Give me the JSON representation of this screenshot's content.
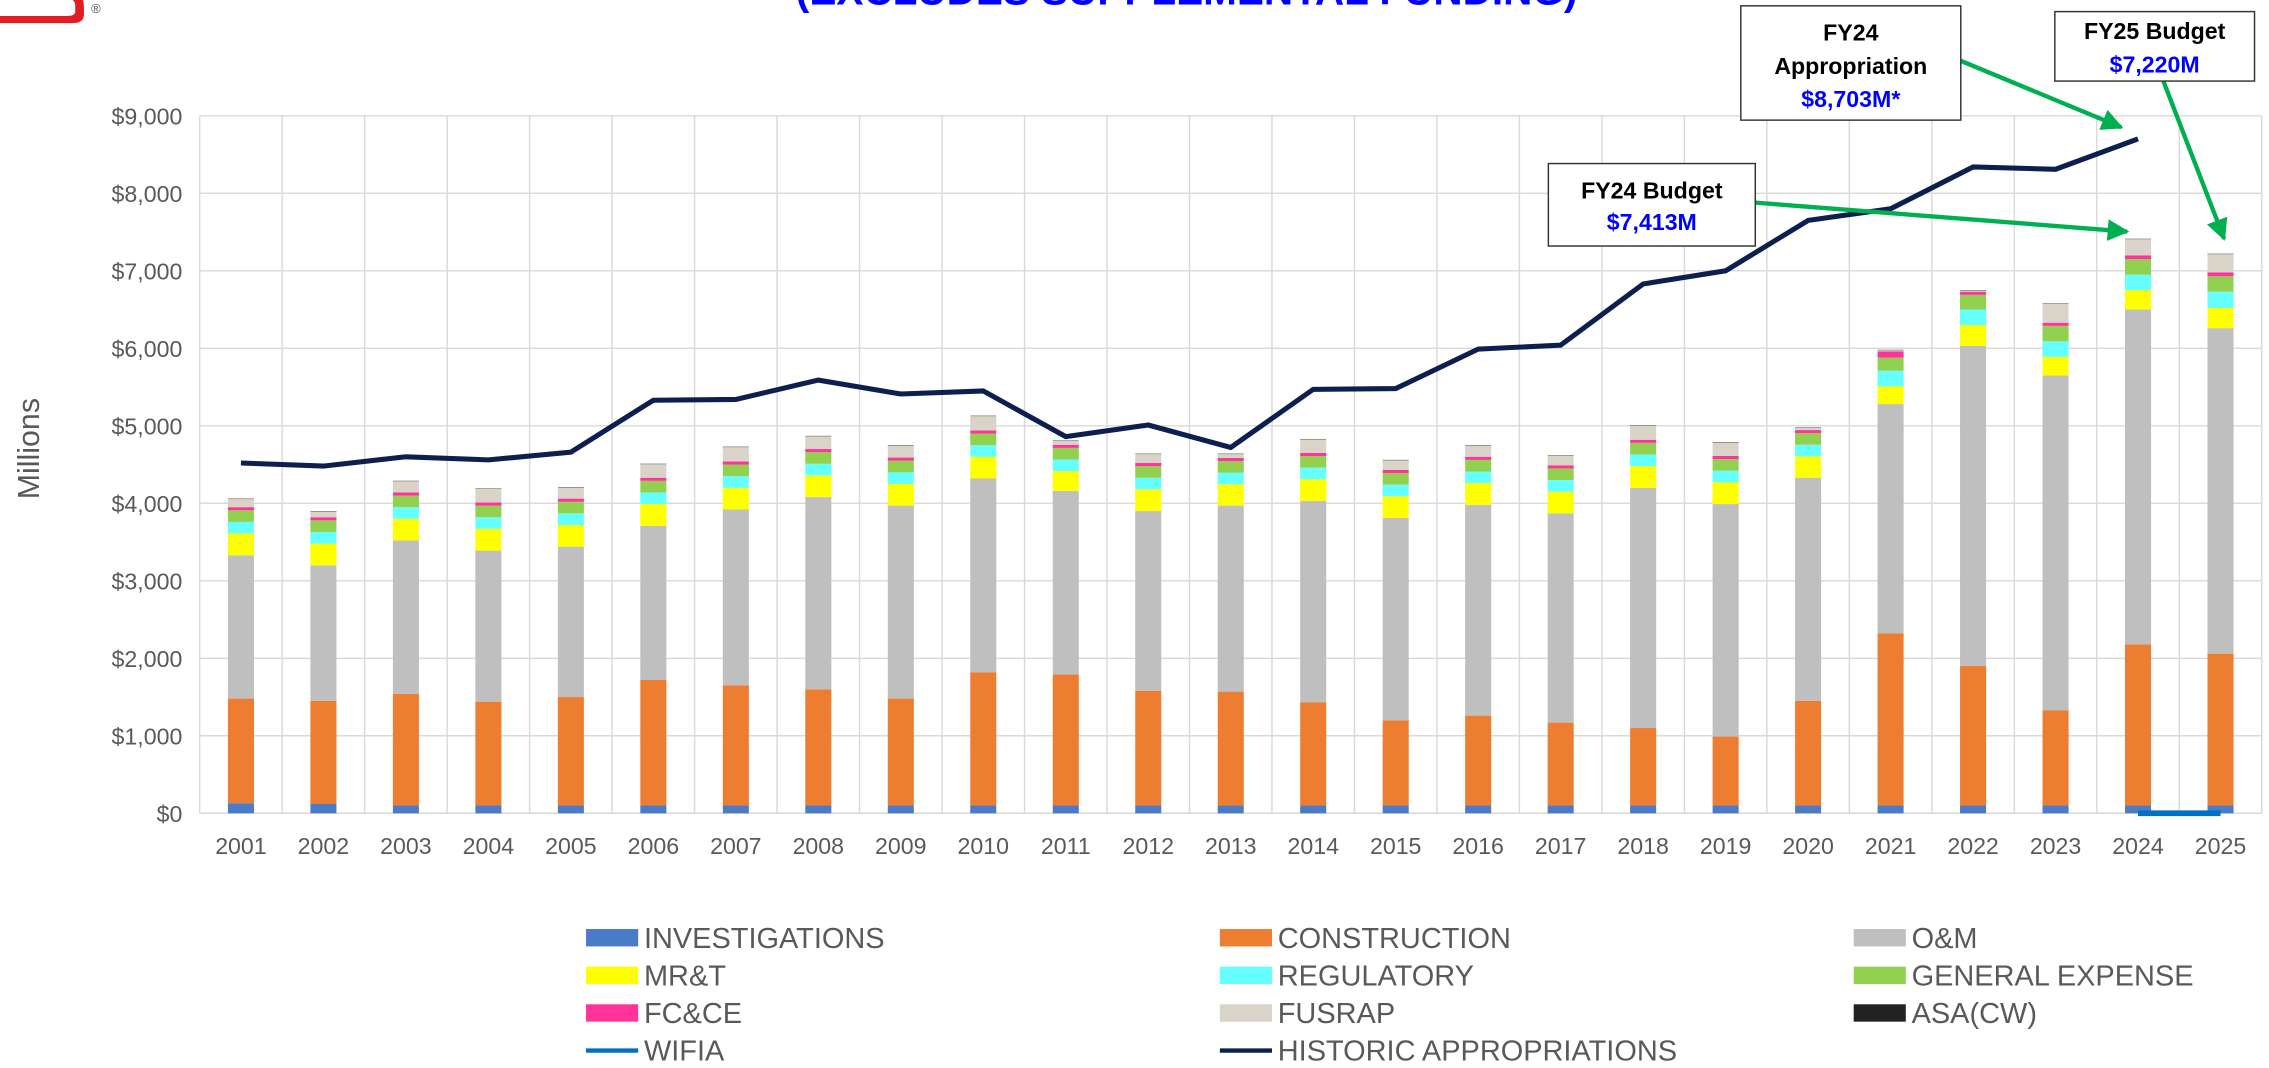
{
  "chart_data": {
    "type": "bar",
    "title": "(EXCLUDES SUPPLEMENTAL FUNDING)",
    "y_label": "Millions",
    "categories": [
      "2001",
      "2002",
      "2003",
      "2004",
      "2005",
      "2006",
      "2007",
      "2008",
      "2009",
      "2010",
      "2011",
      "2012",
      "2013",
      "2014",
      "2015",
      "2016",
      "2017",
      "2018",
      "2019",
      "2020",
      "2021",
      "2022",
      "2023",
      "2024",
      "2025"
    ],
    "ylim": [
      0,
      9000
    ],
    "yticks": [
      {
        "value": 0,
        "label": "$0"
      },
      {
        "value": 1000,
        "label": "$1,000"
      },
      {
        "value": 2000,
        "label": "$2,000"
      },
      {
        "value": 3000,
        "label": "$3,000"
      },
      {
        "value": 4000,
        "label": "$4,000"
      },
      {
        "value": 5000,
        "label": "$5,000"
      },
      {
        "value": 6000,
        "label": "$6,000"
      },
      {
        "value": 7000,
        "label": "$7,000"
      },
      {
        "value": 8000,
        "label": "$8,000"
      },
      {
        "value": 9000,
        "label": "$9,000"
      }
    ],
    "grid": true,
    "stacked": true,
    "series": [
      {
        "name": "INVESTIGATIONS",
        "color": "#4a7bc8",
        "values": [
          130,
          120,
          100,
          100,
          100,
          100,
          100,
          100,
          100,
          100,
          100,
          100,
          100,
          100,
          100,
          100,
          100,
          100,
          100,
          100,
          100,
          100,
          100,
          100,
          100
        ]
      },
      {
        "name": "CONSTRUCTION",
        "color": "#ed7d31",
        "values": [
          1350,
          1330,
          1440,
          1340,
          1400,
          1620,
          1550,
          1500,
          1380,
          1720,
          1690,
          1480,
          1470,
          1330,
          1100,
          1160,
          1070,
          1000,
          890,
          1350,
          2220,
          1800,
          1230,
          2080,
          1960
        ]
      },
      {
        "name": "O&M",
        "color": "#bfbfbf",
        "values": [
          1850,
          1750,
          1980,
          1950,
          1940,
          1990,
          2270,
          2480,
          2490,
          2500,
          2370,
          2320,
          2400,
          2600,
          2610,
          2720,
          2700,
          3100,
          3000,
          2880,
          2960,
          4130,
          4320,
          4320,
          4200
        ]
      },
      {
        "name": "MR&T",
        "color": "#ffff00",
        "values": [
          280,
          280,
          280,
          280,
          280,
          280,
          280,
          280,
          280,
          280,
          255,
          280,
          275,
          280,
          280,
          280,
          280,
          280,
          280,
          275,
          230,
          270,
          240,
          250,
          260
        ]
      },
      {
        "name": "REGULATORY",
        "color": "#66ffff",
        "values": [
          150,
          150,
          150,
          150,
          150,
          150,
          150,
          150,
          150,
          150,
          150,
          150,
          150,
          150,
          150,
          150,
          150,
          150,
          150,
          150,
          200,
          200,
          200,
          200,
          210
        ]
      },
      {
        "name": "GENERAL EXPENSE",
        "color": "#92d050",
        "values": [
          150,
          150,
          150,
          150,
          150,
          150,
          150,
          150,
          150,
          150,
          150,
          150,
          150,
          150,
          150,
          150,
          150,
          150,
          150,
          150,
          170,
          190,
          200,
          200,
          200
        ]
      },
      {
        "name": "FC&CE",
        "color": "#ff3399",
        "values": [
          40,
          40,
          40,
          40,
          40,
          40,
          40,
          40,
          40,
          40,
          40,
          40,
          40,
          40,
          40,
          40,
          40,
          40,
          40,
          40,
          80,
          40,
          40,
          50,
          50
        ]
      },
      {
        "name": "FUSRAP",
        "color": "#d9d4c7",
        "values": [
          105,
          75,
          145,
          175,
          145,
          175,
          185,
          165,
          155,
          185,
          50,
          115,
          50,
          175,
          125,
          145,
          125,
          185,
          175,
          30,
          15,
          15,
          245,
          208,
          235
        ]
      },
      {
        "name": "ASA(CW)",
        "color": "#222222",
        "values": [
          5,
          5,
          5,
          5,
          5,
          5,
          5,
          5,
          5,
          5,
          5,
          5,
          5,
          5,
          5,
          5,
          5,
          5,
          5,
          5,
          5,
          5,
          5,
          5,
          5
        ]
      }
    ],
    "lines": [
      {
        "name": "WIFIA",
        "color": "#0070c0",
        "values": [
          null,
          null,
          null,
          null,
          null,
          null,
          null,
          null,
          null,
          null,
          null,
          null,
          null,
          null,
          null,
          null,
          null,
          null,
          null,
          null,
          null,
          null,
          null,
          0,
          0
        ]
      },
      {
        "name": "HISTORIC APPROPRIATIONS",
        "color": "#0c1f4f",
        "values": [
          4520,
          4480,
          4600,
          4560,
          4660,
          5330,
          5340,
          5590,
          5410,
          5450,
          4860,
          5010,
          4720,
          5470,
          5480,
          5990,
          6040,
          6830,
          7000,
          7650,
          7800,
          8340,
          8310,
          8703,
          null
        ]
      }
    ],
    "annotations": [
      {
        "lines": [
          "FY24",
          "Appropriation"
        ],
        "value_label": "$8,703M*"
      },
      {
        "lines": [
          "FY25 Budget"
        ],
        "value_label": "$7,220M"
      },
      {
        "lines": [
          "FY24 Budget"
        ],
        "value_label": "$7,413M"
      }
    ]
  }
}
